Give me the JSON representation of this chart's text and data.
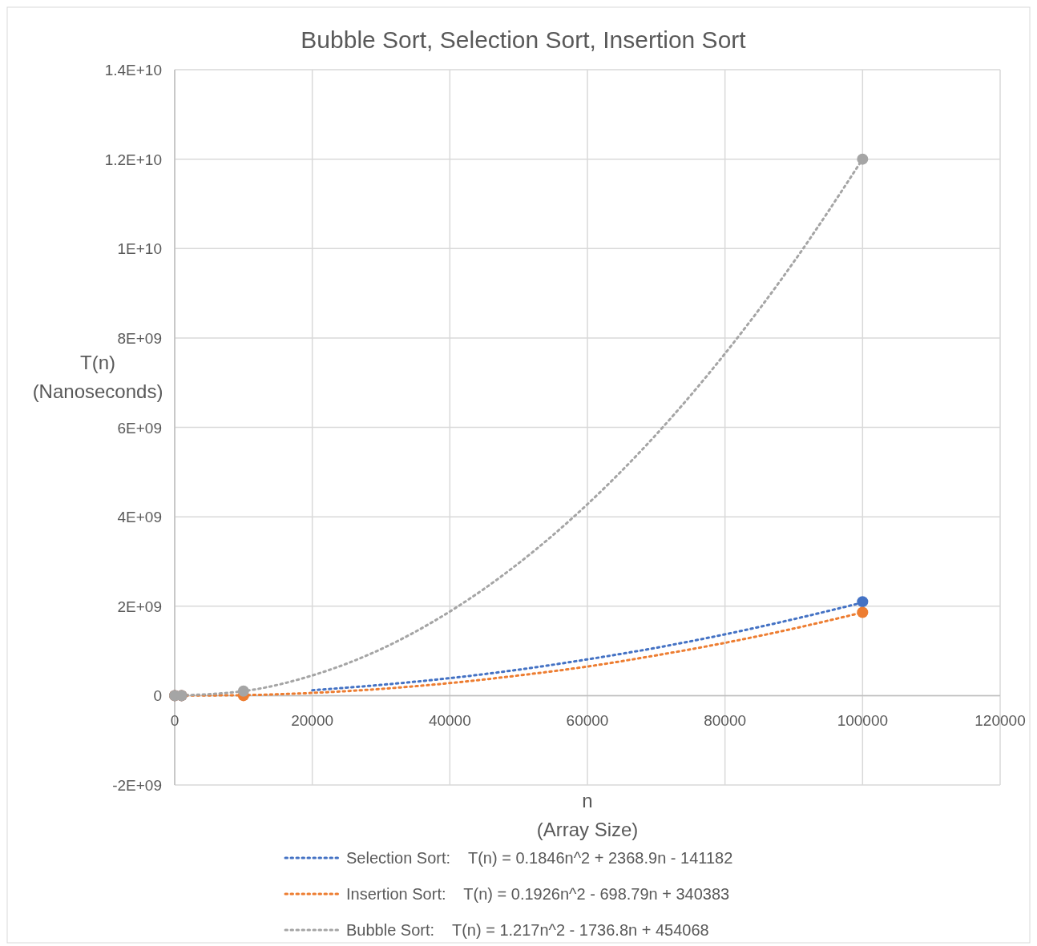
{
  "chart_data": {
    "type": "scatter",
    "title": "Bubble Sort, Selection Sort, Insertion Sort",
    "xlabel": "n\n(Array Size)",
    "ylabel": "T(n)\n(Nanoseconds)",
    "xlim": [
      0,
      120000
    ],
    "xticks": [
      0,
      20000,
      40000,
      60000,
      80000,
      100000,
      120000
    ],
    "ylim": [
      -2000000000,
      14000000000
    ],
    "yticks": [
      {
        "value": -2000000000,
        "label": "-2E+09"
      },
      0,
      {
        "value": 2000000000,
        "label": "2E+09"
      },
      {
        "value": 4000000000,
        "label": "4E+09"
      },
      {
        "value": 6000000000,
        "label": "6E+09"
      },
      {
        "value": 8000000000,
        "label": "8E+09"
      },
      {
        "value": 10000000000,
        "label": "1E+10"
      },
      {
        "value": 12000000000,
        "label": "1.2E+10"
      },
      {
        "value": 14000000000,
        "label": "1.4E+10"
      }
    ],
    "grid": true,
    "legend": "bottom",
    "marker": "circle",
    "series": [
      {
        "color": "#4472c4",
        "x": [
          10,
          1000,
          100000
        ],
        "values": [
          0,
          0,
          2100000000
        ]
      },
      {
        "color": "#ed7d31",
        "x": [
          10,
          1000,
          10000,
          100000
        ],
        "values": [
          0,
          0,
          0,
          1860000000
        ]
      },
      {
        "color": "#a5a5a5",
        "x": [
          10,
          1000,
          10000,
          100000
        ],
        "values": [
          0,
          0,
          100000000,
          12000000000
        ]
      },
      {
        "type": "line",
        "marker": "none",
        "line_style": "dotted",
        "name": "Selection Sort:    T(n) = 0.1846n^2 + 2368.9n - 141182",
        "color": "#4472c4",
        "x": [
          20000,
          30000,
          40000,
          50000,
          60000,
          70000,
          80000,
          90000,
          100000
        ],
        "values": [
          120000000,
          240000000,
          390000000,
          580000000,
          810000000,
          1070000000,
          1370000000,
          1710000000,
          2080000000
        ]
      },
      {
        "type": "line",
        "marker": "none",
        "line_style": "dotted",
        "name": "Insertion Sort:    T(n) = 0.1926n^2 - 698.79n + 340383",
        "color": "#ed7d31",
        "x": [
          10,
          10000,
          20000,
          30000,
          40000,
          50000,
          60000,
          70000,
          80000,
          90000,
          100000
        ],
        "values": [
          0,
          10000000,
          60000000,
          150000000,
          280000000,
          450000000,
          650000000,
          900000000,
          1180000000,
          1500000000,
          1860000000
        ]
      },
      {
        "type": "line",
        "marker": "none",
        "line_style": "dotted",
        "name": "Bubble Sort:    T(n) = 1.217n^2 - 1736.8n + 454068",
        "color": "#a5a5a5",
        "x": [
          10,
          10000,
          20000,
          30000,
          40000,
          50000,
          60000,
          70000,
          80000,
          90000,
          100000
        ],
        "values": [
          0,
          100000000,
          450000000,
          1040000000,
          1880000000,
          2960000000,
          4280000000,
          5840000000,
          7650000000,
          9700000000,
          12000000000
        ]
      }
    ]
  }
}
